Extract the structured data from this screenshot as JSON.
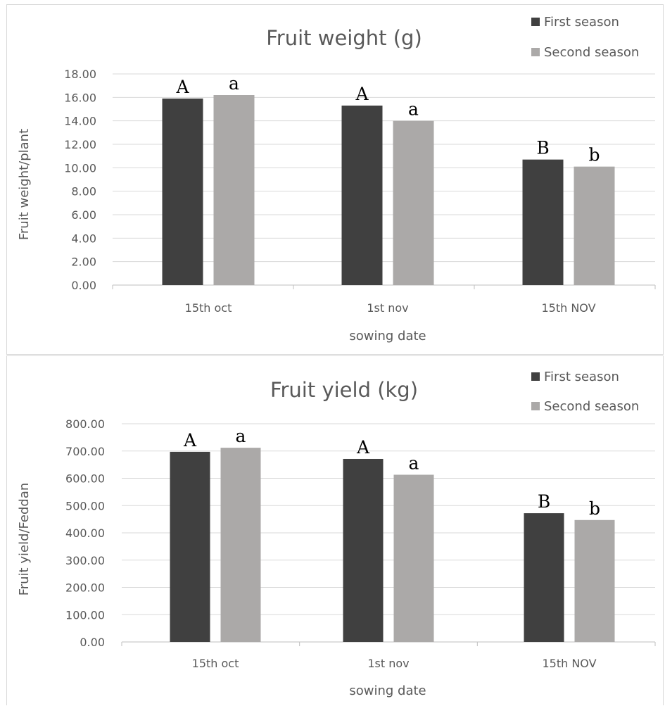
{
  "chart_data": [
    {
      "type": "bar",
      "title": "Fruit weight (g)",
      "xlabel": "sowing date",
      "ylabel": "Fruit weight/plant",
      "ylim": [
        0,
        18
      ],
      "yticks": [
        "0.00",
        "2.00",
        "4.00",
        "6.00",
        "8.00",
        "10.00",
        "12.00",
        "14.00",
        "16.00",
        "18.00"
      ],
      "grid": true,
      "legend_position": "top-right",
      "categories": [
        "15th oct",
        "1st nov",
        "15th NOV"
      ],
      "series": [
        {
          "name": "First season",
          "color": "#404040",
          "values": [
            15.9,
            15.3,
            10.7
          ],
          "labels": [
            "A",
            "A",
            "B"
          ]
        },
        {
          "name": "Second season",
          "color": "#aba9a8",
          "values": [
            16.2,
            14.0,
            10.1
          ],
          "labels": [
            "a",
            "a",
            "b"
          ]
        }
      ]
    },
    {
      "type": "bar",
      "title": "Fruit yield (kg)",
      "xlabel": "sowing date",
      "ylabel": "Fruit yield/Feddan",
      "ylim": [
        0,
        800
      ],
      "yticks": [
        "0.00",
        "100.00",
        "200.00",
        "300.00",
        "400.00",
        "500.00",
        "600.00",
        "700.00",
        "800.00"
      ],
      "grid": true,
      "legend_position": "top-right",
      "categories": [
        "15th oct",
        "1st nov",
        "15th NOV"
      ],
      "series": [
        {
          "name": "First season",
          "color": "#404040",
          "values": [
            697,
            671,
            472
          ],
          "labels": [
            "A",
            "A",
            "B"
          ]
        },
        {
          "name": "Second season",
          "color": "#aba9a8",
          "values": [
            712,
            613,
            447
          ],
          "labels": [
            "a",
            "a",
            "b"
          ]
        }
      ]
    }
  ]
}
